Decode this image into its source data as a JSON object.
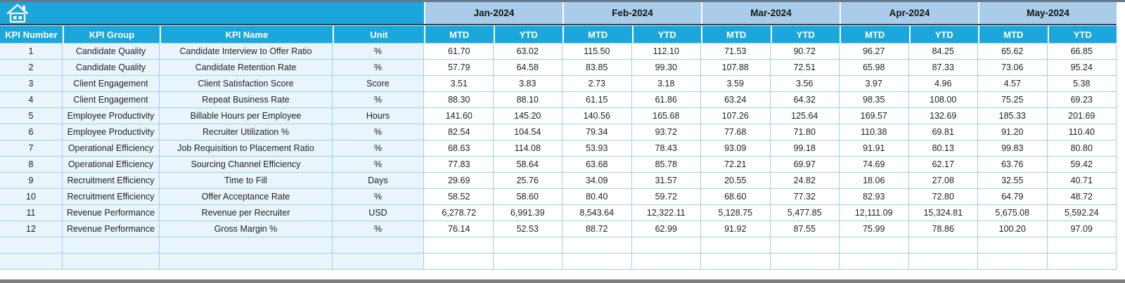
{
  "sheet": {
    "months": [
      "Jan-2024",
      "Feb-2024",
      "Mar-2024",
      "Apr-2024",
      "May-2024"
    ],
    "period_columns": [
      "MTD",
      "YTD"
    ],
    "left_headers": [
      "KPI Number",
      "KPI Group",
      "KPI Name",
      "Unit"
    ],
    "rows": [
      {
        "kpi_number": "1",
        "kpi_group": "Candidate Quality",
        "kpi_name": "Candidate Interview to Offer Ratio",
        "unit": "%",
        "values": [
          "61.70",
          "63.02",
          "115.50",
          "112.10",
          "71.53",
          "90.72",
          "96.27",
          "84.25",
          "65.62",
          "66.85"
        ]
      },
      {
        "kpi_number": "2",
        "kpi_group": "Candidate Quality",
        "kpi_name": "Candidate Retention Rate",
        "unit": "%",
        "values": [
          "57.79",
          "64.58",
          "83.85",
          "99.30",
          "107.88",
          "72.51",
          "65.98",
          "87.33",
          "73.06",
          "95.24"
        ]
      },
      {
        "kpi_number": "3",
        "kpi_group": "Client Engagement",
        "kpi_name": "Client Satisfaction Score",
        "unit": "Score",
        "values": [
          "3.51",
          "3.83",
          "2.73",
          "3.18",
          "3.59",
          "3.56",
          "3.97",
          "4.96",
          "4.57",
          "5.38"
        ]
      },
      {
        "kpi_number": "4",
        "kpi_group": "Client Engagement",
        "kpi_name": "Repeat Business Rate",
        "unit": "%",
        "values": [
          "88.30",
          "88.10",
          "61.15",
          "61.86",
          "63.24",
          "64.32",
          "98.35",
          "108.00",
          "75.25",
          "69.23"
        ]
      },
      {
        "kpi_number": "5",
        "kpi_group": "Employee Productivity",
        "kpi_name": "Billable Hours per Employee",
        "unit": "Hours",
        "values": [
          "141.60",
          "145.20",
          "140.56",
          "165.68",
          "107.26",
          "125.64",
          "169.57",
          "132.69",
          "185.33",
          "201.69"
        ]
      },
      {
        "kpi_number": "6",
        "kpi_group": "Employee Productivity",
        "kpi_name": "Recruiter Utilization %",
        "unit": "%",
        "values": [
          "82.54",
          "104.54",
          "79.34",
          "93.72",
          "77.68",
          "71.80",
          "110.38",
          "69.81",
          "91.20",
          "110.40"
        ]
      },
      {
        "kpi_number": "7",
        "kpi_group": "Operational Efficiency",
        "kpi_name": "Job Requisition to Placement Ratio",
        "unit": "%",
        "values": [
          "68.63",
          "114.08",
          "53.93",
          "78.43",
          "93.09",
          "99.18",
          "91.91",
          "80.13",
          "99.83",
          "80.80"
        ]
      },
      {
        "kpi_number": "8",
        "kpi_group": "Operational Efficiency",
        "kpi_name": "Sourcing Channel Efficiency",
        "unit": "%",
        "values": [
          "77.83",
          "58.64",
          "63.68",
          "85.78",
          "72.21",
          "69.97",
          "74.69",
          "62.17",
          "63.76",
          "59.42"
        ]
      },
      {
        "kpi_number": "9",
        "kpi_group": "Recruitment Efficiency",
        "kpi_name": "Time to Fill",
        "unit": "Days",
        "values": [
          "29.69",
          "25.76",
          "34.09",
          "31.57",
          "20.55",
          "24.82",
          "18.06",
          "27.08",
          "32.55",
          "40.71"
        ]
      },
      {
        "kpi_number": "10",
        "kpi_group": "Recruitment Efficiency",
        "kpi_name": "Offer Acceptance Rate",
        "unit": "%",
        "values": [
          "58.52",
          "58.60",
          "80.40",
          "59.72",
          "68.60",
          "77.32",
          "82.93",
          "72.80",
          "64.79",
          "48.72"
        ]
      },
      {
        "kpi_number": "11",
        "kpi_group": "Revenue Performance",
        "kpi_name": "Revenue per Recruiter",
        "unit": "USD",
        "values": [
          "6,278.72",
          "6,991.39",
          "8,543.64",
          "12,322.11",
          "5,128.75",
          "5,477.85",
          "12,111.09",
          "15,324.81",
          "5,675.08",
          "5,592.24"
        ]
      },
      {
        "kpi_number": "12",
        "kpi_group": "Revenue Performance",
        "kpi_name": "Gross Margin %",
        "unit": "%",
        "values": [
          "76.14",
          "52.53",
          "88.72",
          "62.99",
          "91.92",
          "87.55",
          "75.99",
          "78.86",
          "100.20",
          "97.09"
        ]
      }
    ],
    "empty_row_count": 2,
    "icons": {
      "home": "home-icon"
    },
    "colors": {
      "header_cyan": "#1BA7DC",
      "month_band_blue": "#A9CCEB",
      "left_cell_blue": "#E9F4FB",
      "grid_line": "#9AD4E6",
      "divider_dark": "#20455E",
      "top_edge_gray": "#64788A",
      "bottom_bar_gray": "#7F7F7F",
      "text_dark": "#1F1F1F"
    }
  }
}
